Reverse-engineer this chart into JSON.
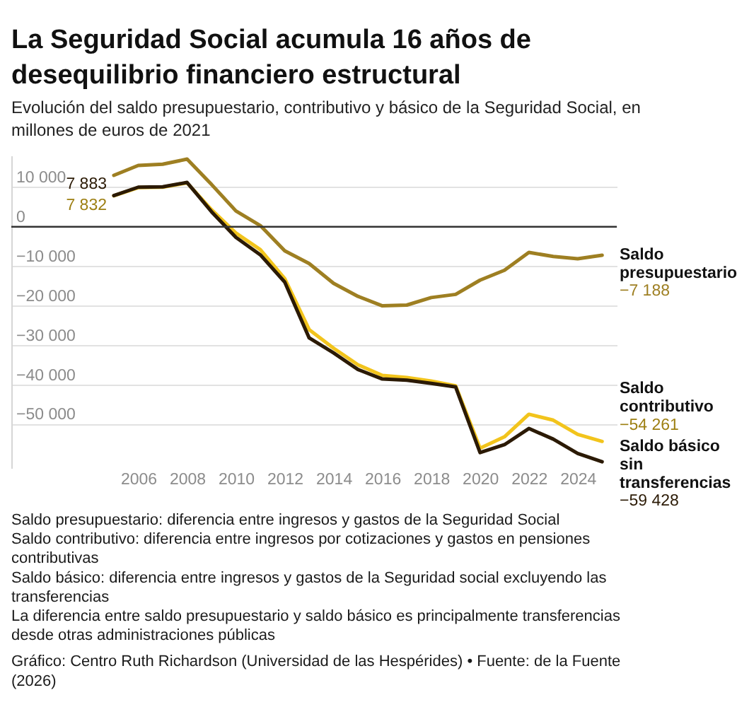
{
  "chart_data": {
    "type": "line",
    "title": "La Seguridad Social acumula 16 años de desequilibrio financiero estructural",
    "subtitle": "Evolución del saldo presupuestario, contributivo y básico de la Seguridad Social, en millones de euros de 2021",
    "x": [
      2005,
      2006,
      2007,
      2008,
      2009,
      2010,
      2011,
      2012,
      2013,
      2014,
      2015,
      2016,
      2017,
      2018,
      2019,
      2020,
      2021,
      2022,
      2023,
      2024,
      2025
    ],
    "xlim": [
      2000.8,
      2025.6
    ],
    "xticks": [
      2006,
      2008,
      2010,
      2012,
      2014,
      2016,
      2018,
      2020,
      2022,
      2024
    ],
    "ylim": [
      -61000,
      18000
    ],
    "yticks": [
      {
        "value": 10000,
        "label": "10 000"
      },
      0,
      {
        "value": -10000,
        "label": "−10 000"
      },
      {
        "value": -20000,
        "label": "−20 000"
      },
      {
        "value": -30000,
        "label": "−30 000"
      },
      {
        "value": -40000,
        "label": "−40 000"
      },
      {
        "value": -50000,
        "label": "−50 000"
      }
    ],
    "grid": "y",
    "ref_lines": [
      {
        "axis": "y",
        "value": 0,
        "color": "#333333"
      }
    ],
    "marker": "none",
    "line_style": "solid",
    "series": [
      {
        "name": "Saldo presupuestario",
        "color": "#9e7f22",
        "values": [
          13000,
          15500,
          15800,
          17100,
          10700,
          4000,
          300,
          -6100,
          -9300,
          -14300,
          -17600,
          -20000,
          -19800,
          -17900,
          -17100,
          -13500,
          -11000,
          -6500,
          -7500,
          -8100,
          -7188
        ],
        "value_labels": [
          null,
          null,
          null,
          null,
          null,
          null,
          null,
          null,
          null,
          null,
          null,
          null,
          null,
          null,
          null,
          null,
          null,
          null,
          null,
          null,
          "−7 188"
        ]
      },
      {
        "name": "Saldo contributivo",
        "color": "#f2c41c",
        "values": [
          7832,
          9900,
          10000,
          11100,
          4300,
          -1600,
          -5800,
          -13100,
          -26000,
          -30700,
          -34900,
          -37600,
          -38100,
          -39000,
          -40200,
          -56000,
          -53100,
          -47400,
          -48900,
          -52500,
          -54261
        ],
        "value_labels": [
          "7 832",
          null,
          null,
          null,
          null,
          null,
          null,
          null,
          null,
          null,
          null,
          null,
          null,
          null,
          null,
          null,
          null,
          null,
          null,
          null,
          "−54 261"
        ]
      },
      {
        "name": "Saldo básico sin transferencias",
        "color": "#2b1a05",
        "values": [
          7883,
          10000,
          10100,
          11200,
          3800,
          -2700,
          -7100,
          -14000,
          -28100,
          -31900,
          -36100,
          -38500,
          -38800,
          -39600,
          -40500,
          -57100,
          -55100,
          -51000,
          -53700,
          -57300,
          -59428
        ],
        "value_labels": [
          "7 883",
          null,
          null,
          null,
          null,
          null,
          null,
          null,
          null,
          null,
          null,
          null,
          null,
          null,
          null,
          null,
          null,
          null,
          null,
          null,
          "−59 428"
        ]
      }
    ],
    "annotations": [
      "Saldo presupuestario: diferencia entre ingresos y gastos de la Seguridad Social",
      "Saldo contributivo: diferencia entre ingresos por cotizaciones y gastos en pensiones contributivas",
      "Saldo básico: diferencia entre ingresos y gastos de la Seguridad social excluyendo las transferencias",
      "La diferencia entre saldo presupuestario y saldo básico es principalmente transferencias desde otras administraciones públicas",
      "Gráfico: Centro Ruth Richardson (Universidad de las Hespérides) • Fuente: de la Fuente (2026)"
    ]
  }
}
